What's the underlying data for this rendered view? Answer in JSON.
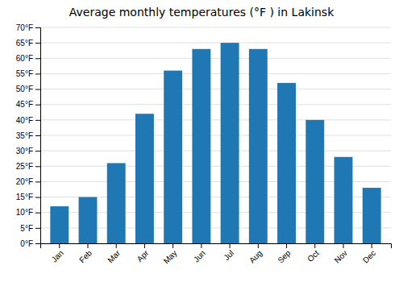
{
  "chart_data": {
    "type": "bar",
    "title": "Average monthly temperatures (°F ) in Lakinsk",
    "categories": [
      "Jan",
      "Feb",
      "Mar",
      "Apr",
      "May",
      "Jun",
      "Jul",
      "Aug",
      "Sep",
      "Oct",
      "Nov",
      "Dec"
    ],
    "values": [
      12,
      15,
      26,
      42,
      56,
      63,
      65,
      63,
      52,
      40,
      28,
      18
    ],
    "ylim": [
      0,
      70
    ],
    "yticks": [
      {
        "value": 0,
        "label": "0°F"
      },
      {
        "value": 5,
        "label": "5°F"
      },
      {
        "value": 10,
        "label": "10°F"
      },
      {
        "value": 15,
        "label": "15°F"
      },
      {
        "value": 20,
        "label": "20°F"
      },
      {
        "value": 25,
        "label": "25°F"
      },
      {
        "value": 30,
        "label": "30°F"
      },
      {
        "value": 35,
        "label": "35°F"
      },
      {
        "value": 40,
        "label": "40°F"
      },
      {
        "value": 45,
        "label": "45°F"
      },
      {
        "value": 50,
        "label": "50°F"
      },
      {
        "value": 55,
        "label": "55°F"
      },
      {
        "value": 60,
        "label": "60°F"
      },
      {
        "value": 65,
        "label": "65°F"
      },
      {
        "value": 70,
        "label": "70°F"
      }
    ],
    "grid": true
  }
}
